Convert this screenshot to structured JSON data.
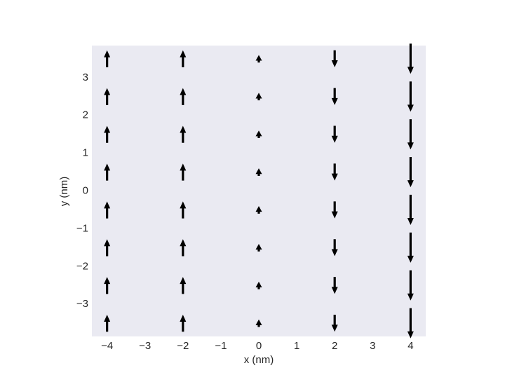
{
  "chart_data": {
    "type": "quiver",
    "xlabel": "x (nm)",
    "ylabel": "y (nm)",
    "background": "#eaeaf2",
    "color": "#000000",
    "xlim": [
      -4.4,
      4.4
    ],
    "ylim": [
      -3.85,
      3.85
    ],
    "xticks": [
      {
        "value": -4,
        "label": "−4"
      },
      {
        "value": -3,
        "label": "−3"
      },
      {
        "value": -2,
        "label": "−2"
      },
      {
        "value": -1,
        "label": "−1"
      },
      0,
      1,
      2,
      3,
      4
    ],
    "yticks": [
      {
        "value": -3,
        "label": "−3"
      },
      {
        "value": -2,
        "label": "−2"
      },
      {
        "value": -1,
        "label": "−1"
      },
      0,
      1,
      2,
      3
    ],
    "x": [
      -4,
      -4,
      -4,
      -4,
      -4,
      -4,
      -4,
      -4,
      -2,
      -2,
      -2,
      -2,
      -2,
      -2,
      -2,
      -2,
      0,
      0,
      0,
      0,
      0,
      0,
      0,
      0,
      2,
      2,
      2,
      2,
      2,
      2,
      2,
      2,
      4,
      4,
      4,
      4,
      4,
      4,
      4,
      4
    ],
    "y": [
      -3.5,
      -2.5,
      -1.5,
      -0.5,
      0.5,
      1.5,
      2.5,
      3.5,
      -3.5,
      -2.5,
      -1.5,
      -0.5,
      0.5,
      1.5,
      2.5,
      3.5,
      -3.5,
      -2.5,
      -1.5,
      -0.5,
      0.5,
      1.5,
      2.5,
      3.5,
      -3.5,
      -2.5,
      -1.5,
      -0.5,
      0.5,
      1.5,
      2.5,
      3.5,
      -3.5,
      -2.5,
      -1.5,
      -0.5,
      0.5,
      1.5,
      2.5,
      3.5
    ],
    "u": [
      0,
      0,
      0,
      0,
      0,
      0,
      0,
      0,
      0,
      0,
      0,
      0,
      0,
      0,
      0,
      0,
      0,
      0,
      0,
      0,
      0,
      0,
      0,
      0,
      0,
      0,
      0,
      0,
      0,
      0,
      0,
      0,
      0,
      0,
      0,
      0,
      0,
      0,
      0,
      0
    ],
    "v": [
      0.45,
      0.45,
      0.45,
      0.45,
      0.45,
      0.45,
      0.45,
      0.45,
      0.45,
      0.45,
      0.45,
      0.45,
      0.45,
      0.45,
      0.45,
      0.45,
      0.2,
      0.2,
      0.2,
      0.2,
      0.2,
      0.2,
      0.2,
      0.2,
      -0.45,
      -0.45,
      -0.45,
      -0.45,
      -0.45,
      -0.45,
      -0.45,
      -0.45,
      -0.8,
      -0.8,
      -0.8,
      -0.8,
      -0.8,
      -0.8,
      -0.8,
      -0.8
    ]
  }
}
